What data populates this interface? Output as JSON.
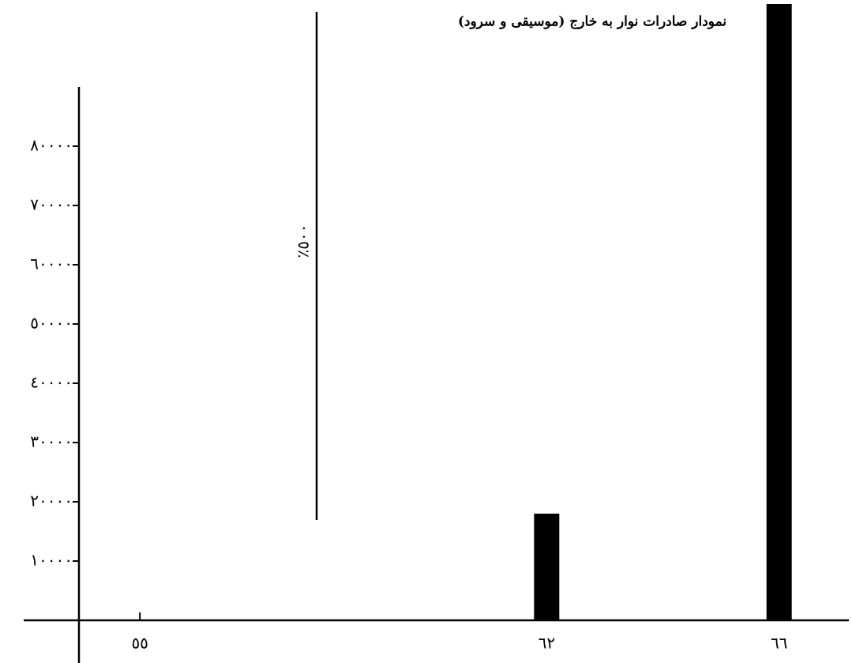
{
  "chart_data": {
    "type": "bar",
    "title": "نمودار صادرات نوار به خارج (موسیقی و سرود)",
    "annotation": "٪٥٠٠",
    "x": [
      62,
      66
    ],
    "values": [
      18000,
      104000
    ],
    "color": "#000000",
    "xlim": [
      53,
      67.2
    ],
    "xticks": [
      {
        "value": 55,
        "label": "٥٥"
      },
      {
        "value": 62,
        "label": "٦٢"
      },
      {
        "value": 66,
        "label": "٦٦"
      }
    ],
    "ylim": [
      0,
      104000
    ],
    "yticks": [
      {
        "value": 10000,
        "label": "١٠٠٠٠"
      },
      {
        "value": 20000,
        "label": "٢٠٠٠٠"
      },
      {
        "value": 30000,
        "label": "٣٠٠٠٠"
      },
      {
        "value": 40000,
        "label": "٤٠٠٠٠"
      },
      {
        "value": 50000,
        "label": "٥٠٠٠٠"
      },
      {
        "value": 60000,
        "label": "٦٠٠٠٠"
      },
      {
        "value": 70000,
        "label": "٧٠٠٠٠"
      },
      {
        "value": 80000,
        "label": "٨٠٠٠٠"
      }
    ]
  }
}
